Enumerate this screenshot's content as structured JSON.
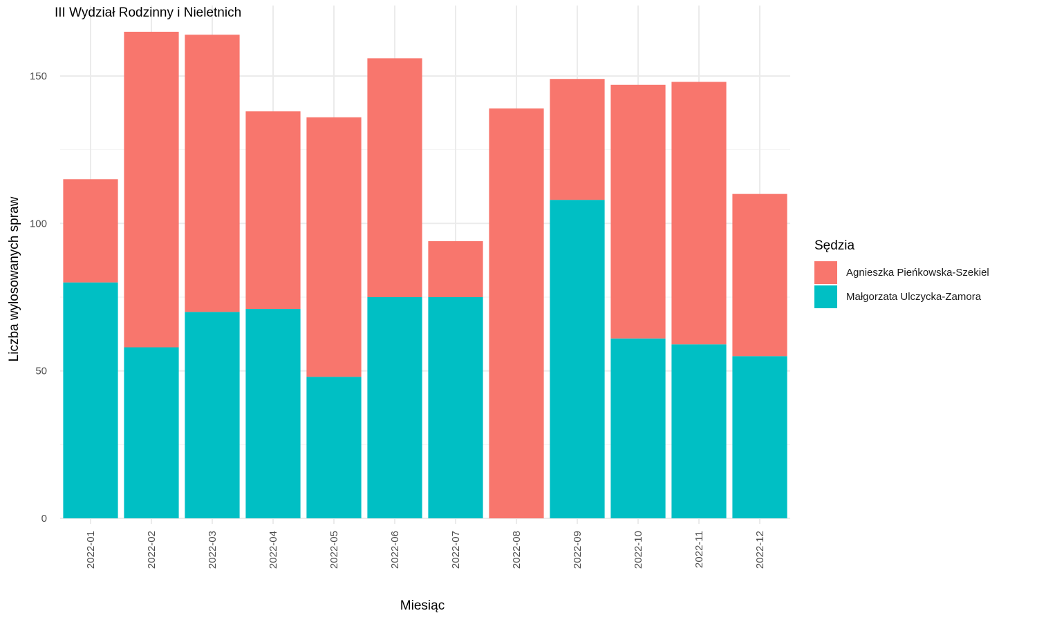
{
  "chart_data": {
    "type": "bar",
    "stacked": true,
    "title": "III Wydział Rodzinny i Nieletnich",
    "xlabel": "Miesiąc",
    "ylabel": "Liczba wylosowanych spraw",
    "ylim": [
      0,
      170
    ],
    "yticks": [
      0,
      50,
      100,
      150
    ],
    "grid": true,
    "legend_position": "right",
    "legend_title": "Sędzia",
    "categories": [
      "2022-01",
      "2022-02",
      "2022-03",
      "2022-04",
      "2022-05",
      "2022-06",
      "2022-07",
      "2022-08",
      "2022-09",
      "2022-10",
      "2022-11",
      "2022-12"
    ],
    "series": [
      {
        "name": "Małgorzata Ulczycka-Zamora",
        "color": "#00BFC4",
        "values": [
          80,
          58,
          70,
          71,
          48,
          75,
          75,
          0,
          108,
          61,
          59,
          55
        ]
      },
      {
        "name": "Agnieszka Pieńkowska-Szekiel",
        "color": "#F8766D",
        "values": [
          35,
          107,
          94,
          67,
          88,
          81,
          19,
          139,
          41,
          86,
          89,
          55
        ]
      }
    ],
    "legend_order": [
      "Agnieszka Pieńkowska-Szekiel",
      "Małgorzata Ulczycka-Zamora"
    ]
  }
}
